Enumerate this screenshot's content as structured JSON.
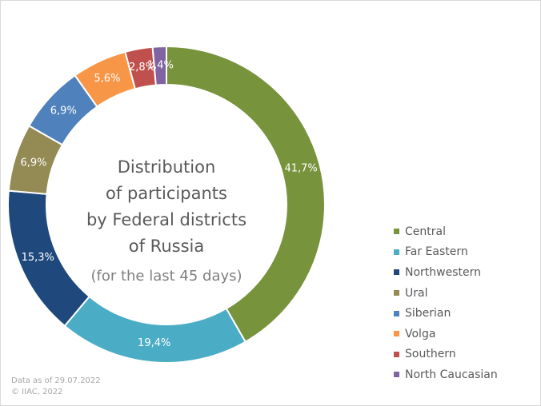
{
  "chart_data": {
    "type": "donut",
    "title_lines": [
      "Distribution",
      "of participants",
      "by Federal districts",
      "of Russia"
    ],
    "subtitle": "(for the last 45 days)",
    "legend_position": "right",
    "slices": [
      {
        "name": "Central",
        "value": 41.7,
        "label": "41,7%",
        "color": "#77933c"
      },
      {
        "name": "Far Eastern",
        "value": 19.4,
        "label": "19,4%",
        "color": "#4bacc6"
      },
      {
        "name": "Northwestern",
        "value": 15.3,
        "label": "15,3%",
        "color": "#1f497d"
      },
      {
        "name": "Ural",
        "value": 6.9,
        "label": "6,9%",
        "color": "#948a54"
      },
      {
        "name": "Siberian",
        "value": 6.9,
        "label": "6,9%",
        "color": "#4f81bd"
      },
      {
        "name": "Volga",
        "value": 5.6,
        "label": "5,6%",
        "color": "#f79646"
      },
      {
        "name": "Southern",
        "value": 2.8,
        "label": "2,8%",
        "color": "#c0504d"
      },
      {
        "name": "North Caucasian",
        "value": 1.4,
        "label": "1,4%",
        "color": "#8064a2"
      }
    ]
  },
  "footer": {
    "line1": "Data as of 29.07.2022",
    "line2": "© IIAC, 2022"
  }
}
